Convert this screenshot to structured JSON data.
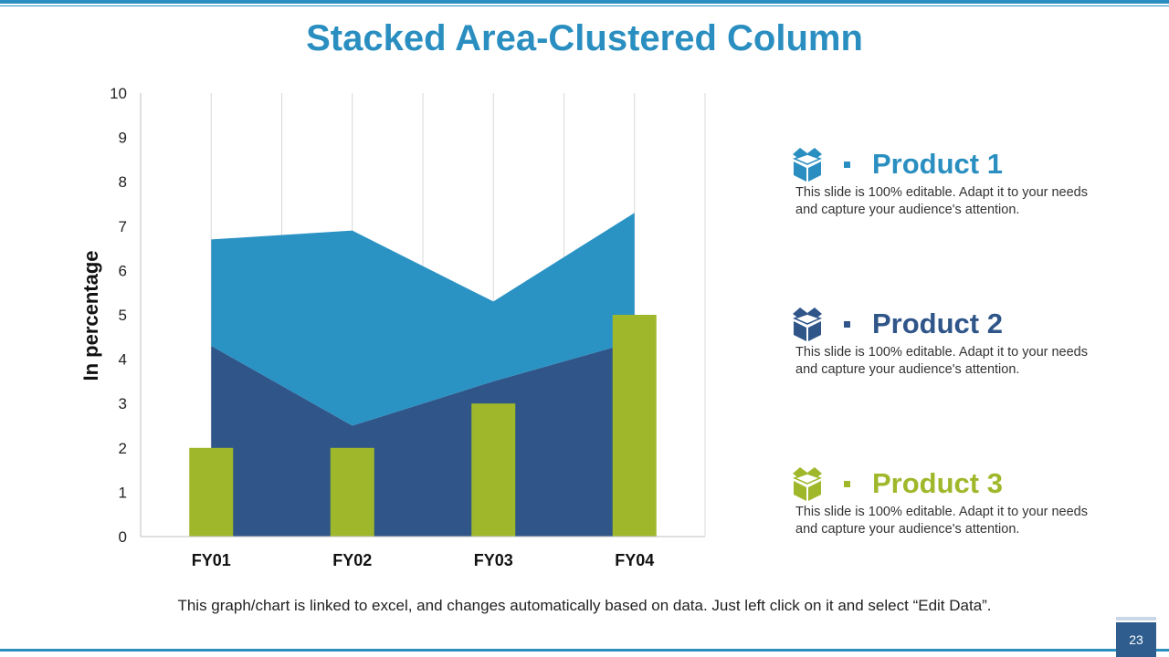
{
  "title": "Stacked Area-Clustered Column",
  "footnote": "This graph/chart is linked to excel, and changes automatically based on data. Just left click on it and select “Edit Data”.",
  "page_number": "23",
  "legend": [
    {
      "name": "Product 1",
      "icon": "box-icon",
      "color": "#2a8fc0",
      "description": "This slide is 100% editable. Adapt it to your needs and capture your audience's attention."
    },
    {
      "name": "Product 2",
      "icon": "box-icon",
      "color": "#2f5589",
      "description": "This slide is 100% editable. Adapt it to your needs and capture your audience's attention."
    },
    {
      "name": "Product 3",
      "icon": "box-icon",
      "color": "#9fb82b",
      "description": "This slide is 100% editable. Adapt it to your needs and capture your audience's attention."
    }
  ],
  "chart_data": {
    "type": "area",
    "title": "",
    "xlabel": "",
    "ylabel": "In percentage",
    "ylim": [
      0,
      10
    ],
    "yticks": [
      0,
      1,
      2,
      3,
      4,
      5,
      6,
      7,
      8,
      9,
      10
    ],
    "categories": [
      "FY01",
      "FY02",
      "FY03",
      "FY04"
    ],
    "grid": "vertical",
    "series": [
      {
        "kind": "area",
        "values": [
          4.3,
          2.5,
          3.5,
          4.4
        ],
        "color": "#2f5589"
      },
      {
        "kind": "area",
        "values": [
          2.4,
          4.4,
          1.8,
          2.9
        ],
        "color": "#2a93c4"
      },
      {
        "kind": "column",
        "values": [
          2,
          2,
          3,
          5
        ],
        "color": "#9fb82b"
      }
    ]
  }
}
